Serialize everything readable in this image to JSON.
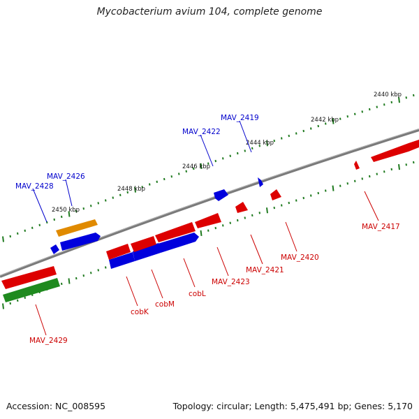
{
  "title": "Mycobacterium avium 104, complete genome",
  "footer": {
    "accession": "Accession: NC_008595",
    "summary": "Topology: circular; Length: 5,475,491 bp; Genes: 5,170"
  },
  "colors": {
    "backbone": "#7a7a7a",
    "tick": "#1f7a1f",
    "forward_gene": "#0000dd",
    "reverse_gene": "#dd0000",
    "orange_gene": "#e08a00",
    "green_gene": "#1f8a1f",
    "label_forward": "#0000cc",
    "label_reverse": "#cc0000"
  },
  "scale_labels": [
    "2440 kbp",
    "2442 kbp",
    "2444 kbp",
    "2446 kbp",
    "2448 kbp",
    "2450 kbp"
  ],
  "gene_labels": {
    "forward": [
      "MAV_2419",
      "MAV_2422",
      "MAV_2426",
      "MAV_2428"
    ],
    "reverse": [
      "MAV_2417",
      "MAV_2420",
      "MAV_2421",
      "MAV_2423",
      "cobL",
      "cobM",
      "cobK",
      "MAV_2429"
    ]
  }
}
